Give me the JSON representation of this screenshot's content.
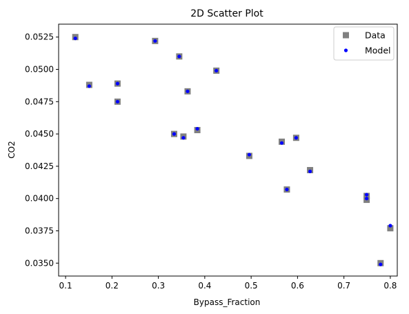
{
  "chart_data": {
    "type": "scatter",
    "title": "2D Scatter Plot",
    "xlabel": "Bypass_Fraction",
    "ylabel": "CO2",
    "xlim": [
      0.085,
      0.815
    ],
    "ylim": [
      0.034,
      0.0535
    ],
    "xticks": [
      0.1,
      0.2,
      0.3,
      0.4,
      0.5,
      0.6,
      0.7,
      0.8
    ],
    "xtick_labels": [
      "0.1",
      "0.2",
      "0.3",
      "0.4",
      "0.5",
      "0.6",
      "0.7",
      "0.8"
    ],
    "yticks": [
      0.035,
      0.0375,
      0.04,
      0.0425,
      0.045,
      0.0475,
      0.05,
      0.0525
    ],
    "ytick_labels": [
      "0.0350",
      "0.0375",
      "0.0400",
      "0.0425",
      "0.0450",
      "0.0475",
      "0.0500",
      "0.0525"
    ],
    "grid": false,
    "legend_position": "top-right",
    "series": [
      {
        "name": "Data",
        "marker": "square",
        "color": "#808080",
        "x": [
          0.121,
          0.151,
          0.212,
          0.212,
          0.293,
          0.334,
          0.345,
          0.354,
          0.363,
          0.384,
          0.425,
          0.496,
          0.566,
          0.577,
          0.597,
          0.627,
          0.749,
          0.749,
          0.779,
          0.8
        ],
        "y": [
          0.0525,
          0.0488,
          0.0489,
          0.0475,
          0.0522,
          0.045,
          0.051,
          0.0448,
          0.0483,
          0.0453,
          0.0499,
          0.0433,
          0.0444,
          0.0407,
          0.0447,
          0.0422,
          0.0399,
          0.0402,
          0.035,
          0.0377
        ]
      },
      {
        "name": "Model",
        "marker": "circle",
        "color": "#0000ff",
        "x": [
          0.121,
          0.151,
          0.212,
          0.212,
          0.293,
          0.334,
          0.345,
          0.354,
          0.363,
          0.384,
          0.425,
          0.496,
          0.566,
          0.577,
          0.597,
          0.627,
          0.749,
          0.749,
          0.779,
          0.8
        ],
        "y": [
          0.0524,
          0.0487,
          0.0489,
          0.0475,
          0.0522,
          0.045,
          0.051,
          0.0447,
          0.0483,
          0.0454,
          0.0499,
          0.0434,
          0.0443,
          0.0407,
          0.0447,
          0.0421,
          0.04,
          0.0403,
          0.0349,
          0.0379
        ]
      }
    ]
  }
}
